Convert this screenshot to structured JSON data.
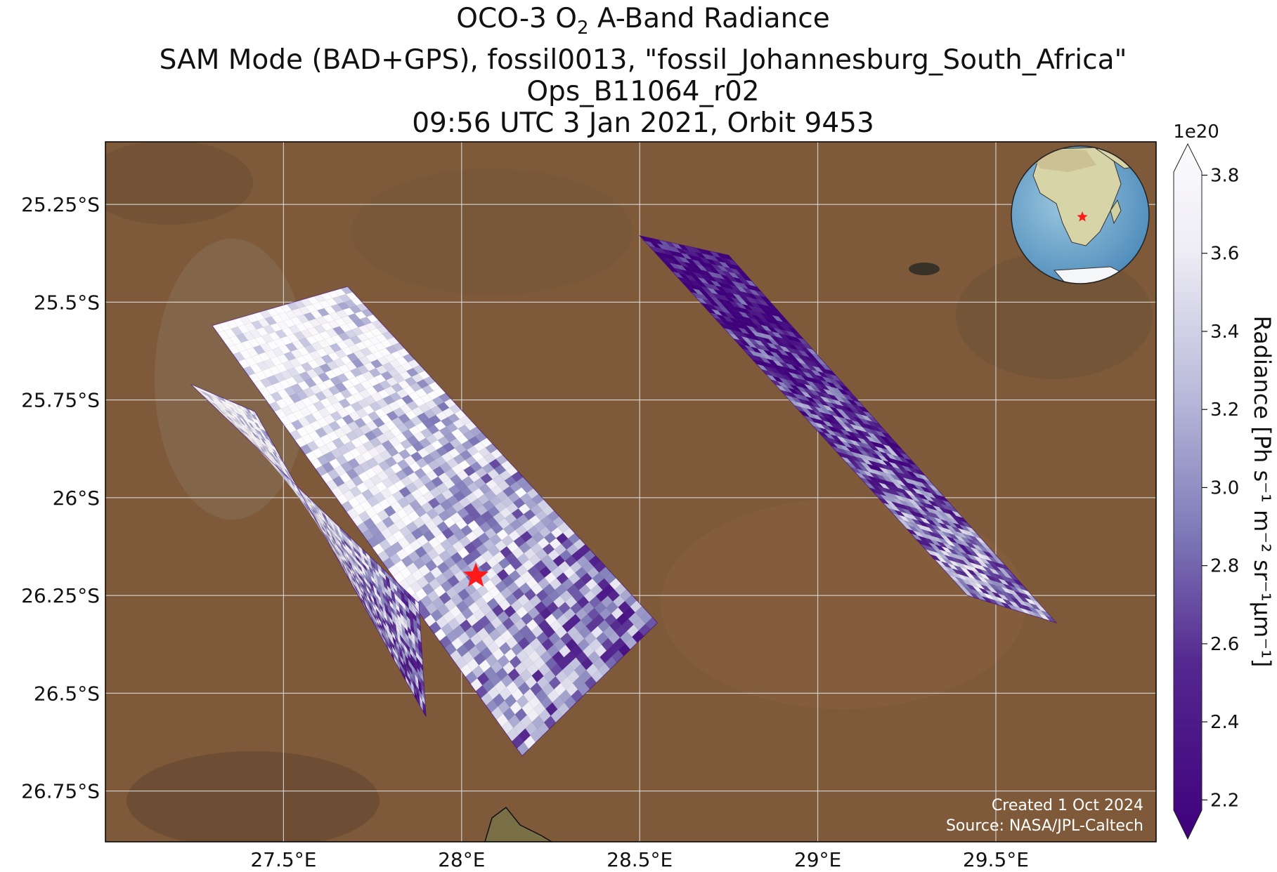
{
  "title": {
    "line1_pre": "OCO-3 O",
    "line1_sub": "2",
    "line1_post": " A-Band Radiance",
    "line2": "SAM Mode (BAD+GPS), fossil0013, \"fossil_Johannesburg_South_Africa\"",
    "line3": "Ops_B11064_r02",
    "line4": "09:56 UTC 3 Jan 2021, Orbit 9453"
  },
  "map": {
    "lon_range": [
      27.0,
      29.95
    ],
    "lat_range": [
      -26.88,
      -25.09
    ],
    "lon_ticks": [
      {
        "value": 27.5,
        "label": "27.5°E"
      },
      {
        "value": 28.0,
        "label": "28°E"
      },
      {
        "value": 28.5,
        "label": "28.5°E"
      },
      {
        "value": 29.0,
        "label": "29°E"
      },
      {
        "value": 29.5,
        "label": "29.5°E"
      }
    ],
    "lat_ticks": [
      {
        "value": -25.25,
        "label": "25.25°S"
      },
      {
        "value": -25.5,
        "label": "25.5°S"
      },
      {
        "value": -25.75,
        "label": "25.75°S"
      },
      {
        "value": -26.0,
        "label": "26°S"
      },
      {
        "value": -26.25,
        "label": "26.25°S"
      },
      {
        "value": -26.5,
        "label": "26.5°S"
      },
      {
        "value": -26.75,
        "label": "26.75°S"
      }
    ],
    "target": {
      "lon": 28.04,
      "lat": -26.2
    },
    "colors": {
      "basemap": "#7f5a3a",
      "grid": "#e6e6e6",
      "target_star": "#ff1a1a",
      "colormap_low": "#3f007d",
      "colormap_high": "#fcfbfd"
    }
  },
  "colorbar": {
    "label": "Radiance [Ph s⁻¹ m⁻² sr⁻¹μm⁻¹]",
    "exponent": "1e20",
    "range": [
      2.1,
      3.88
    ],
    "ticks": [
      "2.2",
      "2.4",
      "2.6",
      "2.8",
      "3.0",
      "3.2",
      "3.4",
      "3.6",
      "3.8"
    ]
  },
  "credits": {
    "created": "Created 1 Oct 2024",
    "source": "Source: NASA/JPL-Caltech"
  },
  "chart_data": {
    "type": "heatmap",
    "title": "OCO-3 O2 A-Band Radiance",
    "xlabel": "",
    "ylabel": "",
    "xlim": [
      27.0,
      29.95
    ],
    "ylim": [
      -26.88,
      -25.09
    ],
    "colorbar_range": [
      2.1,
      3.88
    ],
    "colorbar_units": "Radiance [Ph s⁻¹ m⁻² sr⁻¹μm⁻¹]",
    "colorbar_scale": "1e20",
    "swaths": [
      {
        "corners": [
          [
            27.3,
            -25.56
          ],
          [
            27.68,
            -25.46
          ],
          [
            28.55,
            -26.32
          ],
          [
            28.17,
            -26.66
          ]
        ],
        "mean_radiance": 3.0
      },
      {
        "corners": [
          [
            27.24,
            -25.71
          ],
          [
            27.42,
            -25.78
          ],
          [
            27.9,
            -26.56
          ],
          [
            27.88,
            -26.27
          ]
        ],
        "mean_radiance": 2.9
      },
      {
        "corners": [
          [
            28.5,
            -25.33
          ],
          [
            28.75,
            -25.38
          ],
          [
            29.67,
            -26.32
          ],
          [
            29.42,
            -26.25
          ]
        ],
        "mean_radiance": 2.6
      }
    ],
    "target": {
      "lon": 28.04,
      "lat": -26.2
    }
  }
}
